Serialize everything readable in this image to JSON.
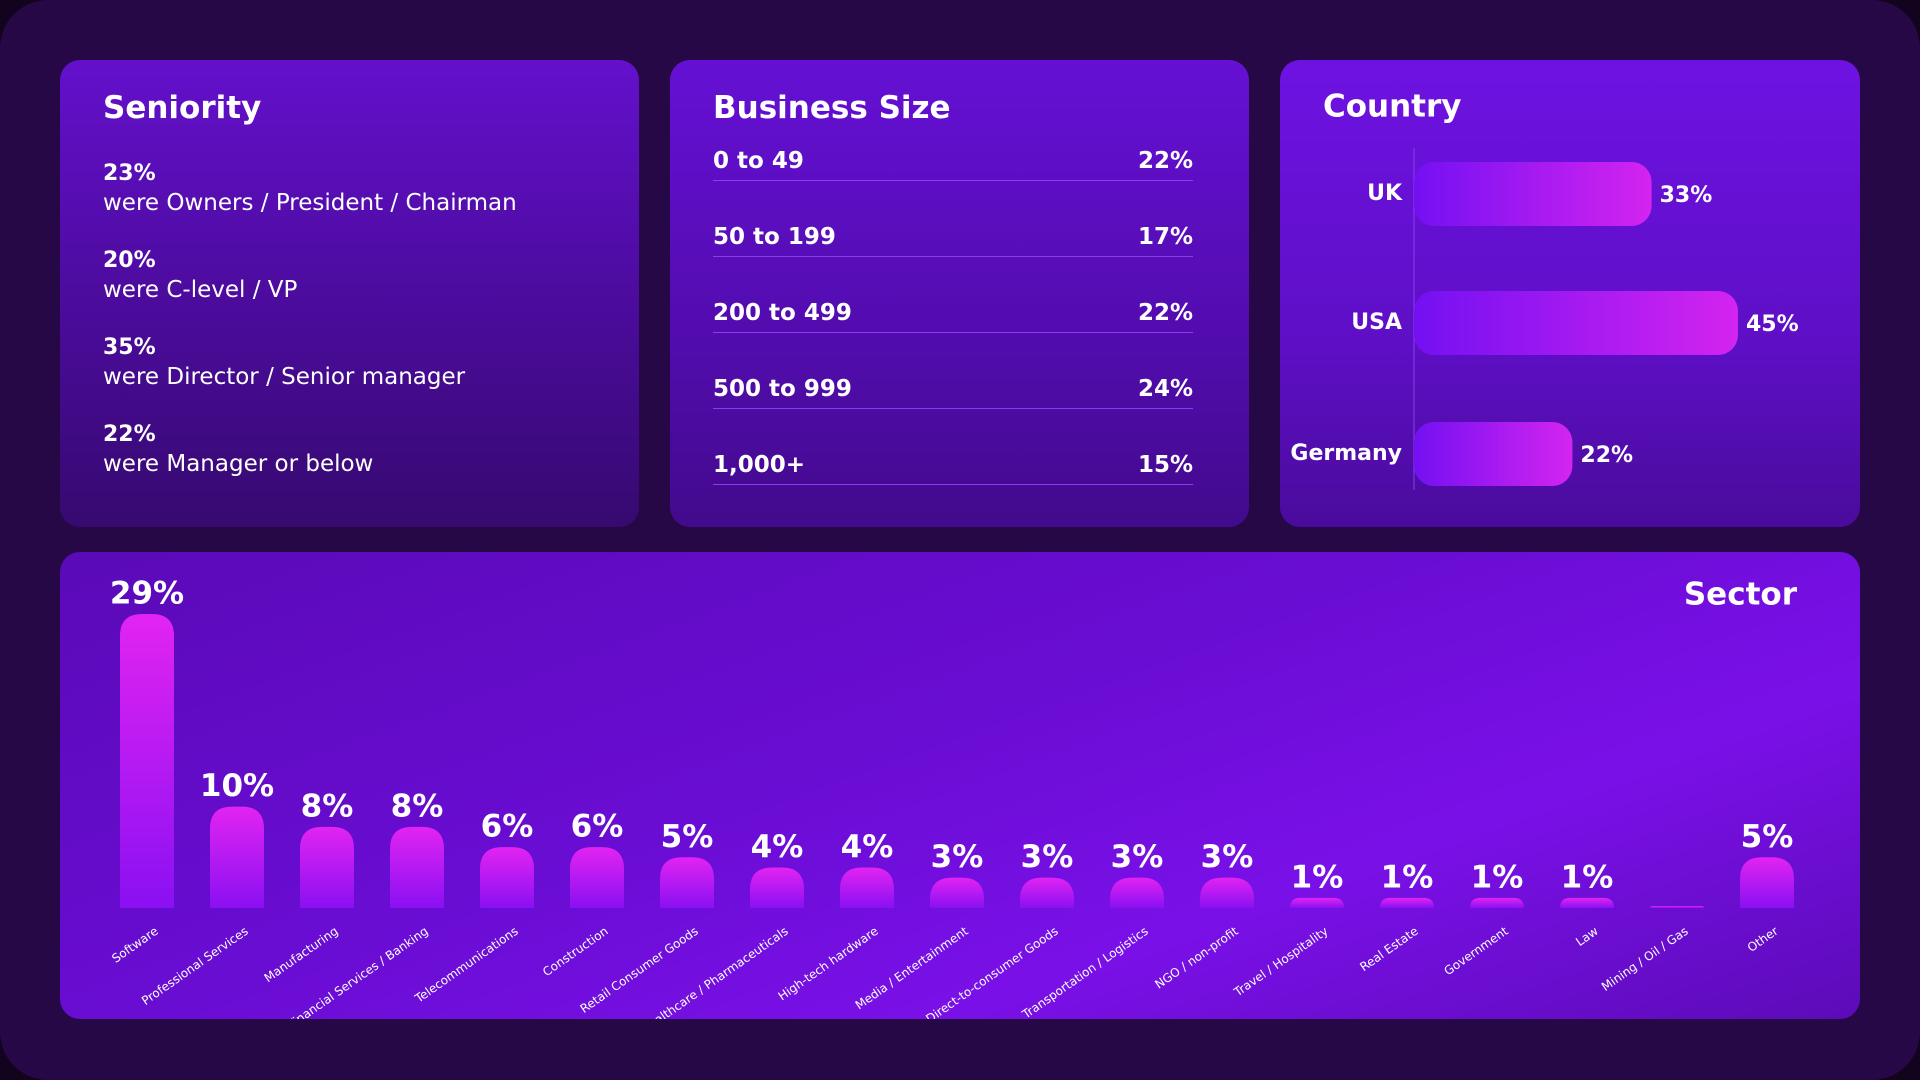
{
  "seniority": {
    "title": "Seniority",
    "items": [
      {
        "share": "23%",
        "label": "were Owners / President / Chairman"
      },
      {
        "share": "20%",
        "label": "were C-level / VP"
      },
      {
        "share": "35%",
        "label": "were Director / Senior manager"
      },
      {
        "share": "22%",
        "label": "were Manager or below"
      }
    ]
  },
  "business_size": {
    "title": "Business Size",
    "rows": [
      {
        "label": "0 to 49",
        "share": "22%"
      },
      {
        "label": "50 to 199",
        "share": "17%"
      },
      {
        "label": "200 to 499",
        "share": "22%"
      },
      {
        "label": "500 to 999",
        "share": "24%"
      },
      {
        "label": "1,000+",
        "share": "15%"
      }
    ]
  },
  "chart_data": [
    {
      "type": "hbar",
      "title": "Country",
      "categories": [
        "UK",
        "USA",
        "Germany"
      ],
      "values": [
        33,
        45,
        22
      ],
      "value_labels": [
        "33%",
        "45%",
        "22%"
      ]
    },
    {
      "type": "bar",
      "title": "Sector",
      "categories": [
        "Software",
        "Professional Services",
        "Manufacturing",
        "Financial Services / Banking",
        "Telecommunications",
        "Construction",
        "Retail Consumer Goods",
        "Healthcare / Pharmaceuticals",
        "High-tech hardware",
        "Media / Entertainment",
        "Direct-to-consumer Goods",
        "Transportation / Logistics",
        "NGO / non-profit",
        "Travel / Hospitality",
        "Real Estate",
        "Government",
        "Law",
        "Mining / Oil / Gas",
        "Other"
      ],
      "values": [
        29,
        10,
        8,
        8,
        6,
        6,
        5,
        4,
        4,
        3,
        3,
        3,
        3,
        1,
        1,
        1,
        1,
        0,
        5
      ],
      "value_labels": [
        "29%",
        "10%",
        "8%",
        "8%",
        "6%",
        "6%",
        "5%",
        "4%",
        "4%",
        "3%",
        "3%",
        "3%",
        "3%",
        "1%",
        "1%",
        "1%",
        "1%",
        null,
        "5%"
      ]
    }
  ]
}
